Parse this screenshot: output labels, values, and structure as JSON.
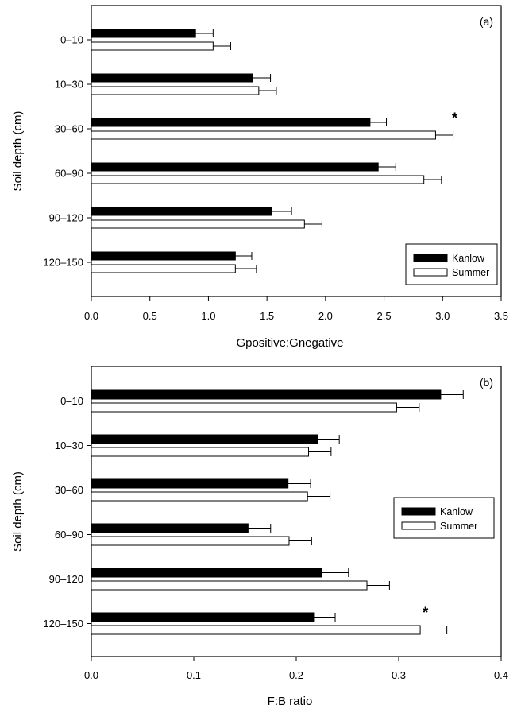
{
  "chart_data": [
    {
      "type": "bar",
      "orientation": "horizontal",
      "panel_label": "(a)",
      "categories": [
        "0–10",
        "10–30",
        "30–60",
        "60–90",
        "90–120",
        "120–150"
      ],
      "series": [
        {
          "name": "Kanlow",
          "values": [
            0.89,
            1.38,
            2.38,
            2.45,
            1.54,
            1.23
          ],
          "errors": [
            0.15,
            0.15,
            0.14,
            0.15,
            0.17,
            0.14
          ],
          "color": "#000000"
        },
        {
          "name": "Summer",
          "values": [
            1.04,
            1.43,
            2.94,
            2.84,
            1.82,
            1.23
          ],
          "errors": [
            0.15,
            0.15,
            0.15,
            0.15,
            0.15,
            0.18
          ],
          "color": "#ffffff"
        }
      ],
      "xlabel": "Gpositive:Gnegative",
      "ylabel": "Soil depth (cm)",
      "xlim": [
        0,
        3.5
      ],
      "xticks": [
        "0.0",
        "0.5",
        "1.0",
        "1.5",
        "2.0",
        "2.5",
        "3.0",
        "3.5"
      ],
      "significance": [
        {
          "category": "30–60",
          "label": "*"
        }
      ],
      "legend_position": "bottom-right",
      "grid": false
    },
    {
      "type": "bar",
      "orientation": "horizontal",
      "panel_label": "(b)",
      "categories": [
        "0–10",
        "10–30",
        "30–60",
        "60–90",
        "90–120",
        "120–150"
      ],
      "series": [
        {
          "name": "Kanlow",
          "values": [
            0.341,
            0.221,
            0.192,
            0.153,
            0.225,
            0.217
          ],
          "errors": [
            0.022,
            0.021,
            0.022,
            0.022,
            0.026,
            0.021
          ],
          "color": "#000000"
        },
        {
          "name": "Summer",
          "values": [
            0.298,
            0.212,
            0.211,
            0.193,
            0.269,
            0.321
          ],
          "errors": [
            0.022,
            0.022,
            0.022,
            0.022,
            0.022,
            0.026
          ],
          "color": "#ffffff"
        }
      ],
      "xlabel": "F:B ratio",
      "ylabel": "Soil depth (cm)",
      "xlim": [
        0,
        0.4
      ],
      "xticks": [
        "0.0",
        "0.1",
        "0.2",
        "0.3",
        "0.4"
      ],
      "significance": [
        {
          "category": "120–150",
          "label": "*"
        }
      ],
      "legend_position": "right",
      "grid": false
    }
  ]
}
